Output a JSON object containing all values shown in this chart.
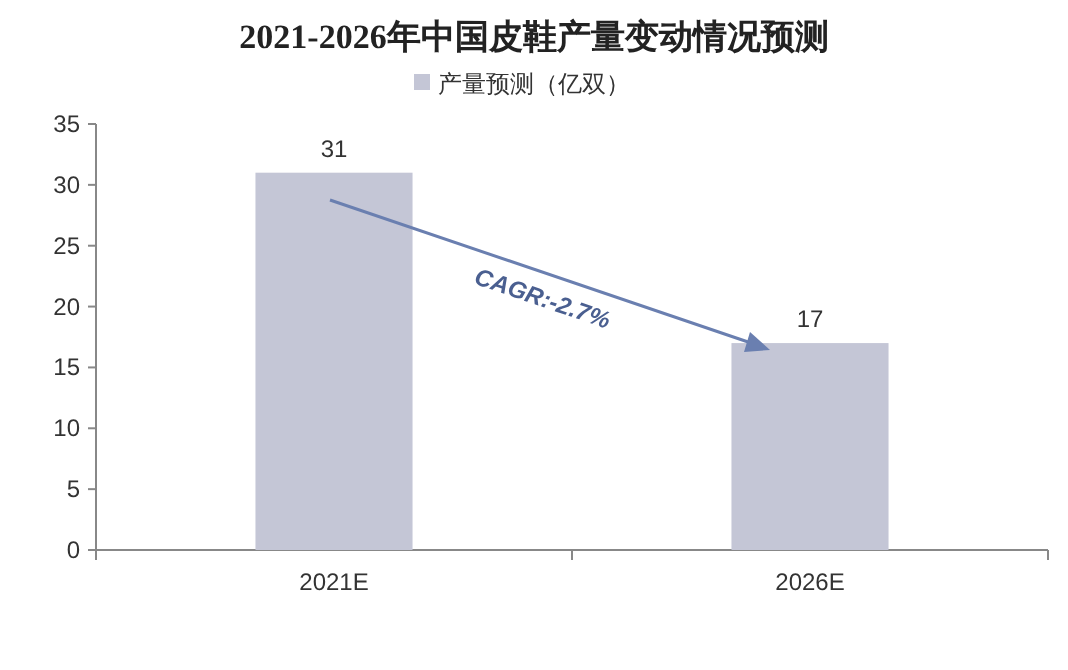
{
  "chart_data": {
    "type": "bar",
    "title": "2021-2026年中国皮鞋产量变动情况预测",
    "categories": [
      "2021E",
      "2026E"
    ],
    "series": [
      {
        "name": "产量预测（亿双）",
        "color": "#c4c6d6",
        "values": [
          31,
          17
        ]
      }
    ],
    "ylim": [
      0,
      35
    ],
    "yticks": [
      0,
      5,
      10,
      15,
      20,
      25,
      30,
      35
    ],
    "data_labels": true,
    "legend": "top",
    "grid": false,
    "annotations": [
      "CAGR:-2.7%"
    ]
  }
}
